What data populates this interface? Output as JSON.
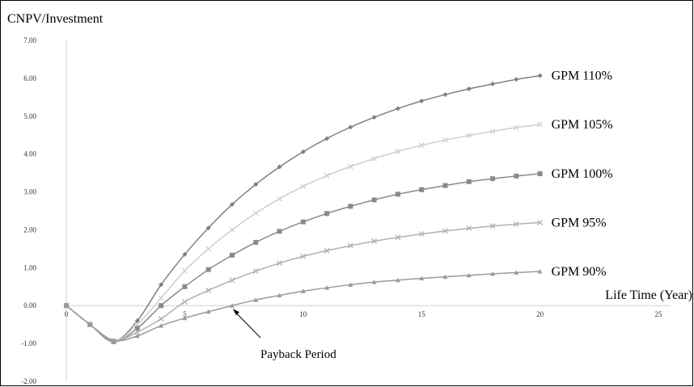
{
  "chart_data": {
    "type": "line",
    "ylabel": "CNPV/Investment",
    "xlabel": "Life Time (Year)",
    "xlim": [
      0,
      25
    ],
    "ylim": [
      -2,
      7
    ],
    "xticks": [
      0,
      5,
      10,
      15,
      20,
      25
    ],
    "yticks": [
      "7.00",
      "6.00",
      "5.00",
      "4.00",
      "3.00",
      "2.00",
      "1.00",
      "0.00",
      "-1.00",
      "-2.00"
    ],
    "x": [
      0,
      1,
      2,
      3,
      4,
      5,
      6,
      7,
      8,
      9,
      10,
      11,
      12,
      13,
      14,
      15,
      16,
      17,
      18,
      19,
      20
    ],
    "series": [
      {
        "name": "GPM 110%",
        "marker": "diamond",
        "color": "#7f7f7f",
        "values": [
          0,
          -0.5,
          -0.95,
          -0.4,
          0.55,
          1.35,
          2.05,
          2.67,
          3.2,
          3.66,
          4.06,
          4.41,
          4.71,
          4.97,
          5.2,
          5.4,
          5.57,
          5.72,
          5.85,
          5.97,
          6.07
        ]
      },
      {
        "name": "GPM 105%",
        "marker": "x",
        "color": "#cfcfcf",
        "values": [
          0,
          -0.5,
          -0.95,
          -0.5,
          0.2,
          0.92,
          1.5,
          2.0,
          2.44,
          2.82,
          3.15,
          3.43,
          3.67,
          3.88,
          4.07,
          4.23,
          4.37,
          4.49,
          4.6,
          4.7,
          4.78
        ]
      },
      {
        "name": "GPM 100%",
        "marker": "square",
        "color": "#8a8a8a",
        "values": [
          0,
          -0.5,
          -0.95,
          -0.6,
          0.0,
          0.5,
          0.95,
          1.33,
          1.67,
          1.96,
          2.21,
          2.43,
          2.62,
          2.79,
          2.94,
          3.06,
          3.17,
          3.27,
          3.35,
          3.42,
          3.48
        ]
      },
      {
        "name": "GPM 95%",
        "marker": "x",
        "color": "#b0b0b0",
        "values": [
          0,
          -0.5,
          -0.93,
          -0.7,
          -0.35,
          0.1,
          0.4,
          0.67,
          0.91,
          1.12,
          1.3,
          1.45,
          1.58,
          1.7,
          1.8,
          1.89,
          1.97,
          2.04,
          2.1,
          2.15,
          2.19
        ]
      },
      {
        "name": "GPM 90%",
        "marker": "triangle",
        "color": "#9a9a9a",
        "values": [
          0,
          -0.5,
          -0.92,
          -0.8,
          -0.53,
          -0.33,
          -0.16,
          0.0,
          0.15,
          0.27,
          0.38,
          0.47,
          0.55,
          0.62,
          0.67,
          0.72,
          0.76,
          0.8,
          0.84,
          0.87,
          0.9
        ]
      }
    ],
    "annotations": [
      {
        "text": "Payback Period",
        "points_to": {
          "x": 7,
          "y": 0
        }
      }
    ],
    "grid": false,
    "legend": "inline-right"
  }
}
